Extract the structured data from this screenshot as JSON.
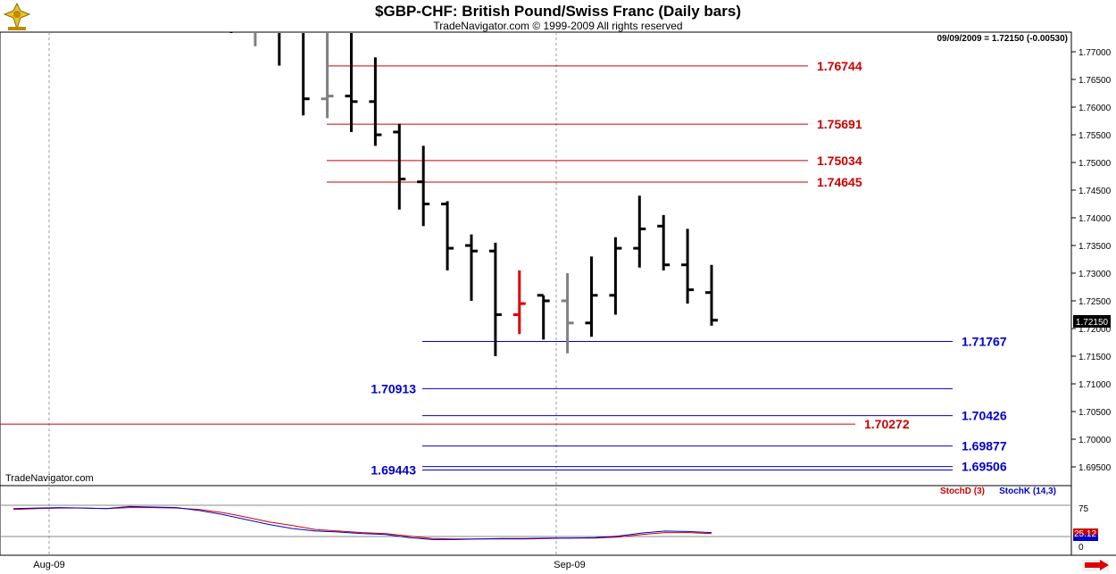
{
  "header": {
    "title": "$GBP-CHF:  British Pound/Swiss Franc  (Daily bars)",
    "copyright": "TradeNavigator.com © 1999-2009 All rights reserved",
    "quote": "09/09/2009 = 1.72150 (-0.00530)"
  },
  "price_panel": {
    "watermark": "TradeNavigator.com",
    "last_price": "1.72150",
    "last_price_value": 1.7215,
    "y_ticks": [
      "1.77000",
      "1.76500",
      "1.76000",
      "1.75500",
      "1.75000",
      "1.74500",
      "1.74000",
      "1.73500",
      "1.73000",
      "1.72500",
      "1.72000",
      "1.71500",
      "1.71000",
      "1.70500",
      "1.70000",
      "1.69500"
    ]
  },
  "stoch_panel": {
    "legend_d": "StochD (3)",
    "legend_k": "StochK (14,3)",
    "y_ticks": [
      "75",
      "0"
    ],
    "last_value": "25.12"
  },
  "x_labels": [
    "Aug-09",
    "Sep-09"
  ],
  "colors": {
    "bar_up": "#000000",
    "bar_down_red": "#dd0000",
    "bar_gray": "#808080",
    "resistance": "#cc0000",
    "support": "#0000cc",
    "stoch_d": "#cc0000",
    "stoch_k": "#0000cc"
  },
  "chart_data": {
    "type": "ohlc",
    "ylim": [
      1.6925,
      1.7775
    ],
    "bars": [
      {
        "o": 1.776,
        "h": 1.778,
        "l": 1.7735,
        "c": 1.7755,
        "color": "black"
      },
      {
        "o": 1.776,
        "h": 1.778,
        "l": 1.771,
        "c": 1.7765,
        "color": "gray"
      },
      {
        "o": 1.777,
        "h": 1.778,
        "l": 1.7675,
        "c": 1.7775,
        "color": "black"
      },
      {
        "o": 1.775,
        "h": 1.778,
        "l": 1.7585,
        "c": 1.7615,
        "color": "black"
      },
      {
        "o": 1.7615,
        "h": 1.778,
        "l": 1.758,
        "c": 1.762,
        "color": "gray"
      },
      {
        "o": 1.762,
        "h": 1.778,
        "l": 1.7555,
        "c": 1.761,
        "color": "black"
      },
      {
        "o": 1.761,
        "h": 1.769,
        "l": 1.753,
        "c": 1.755,
        "color": "black"
      },
      {
        "o": 1.7555,
        "h": 1.757,
        "l": 1.7415,
        "c": 1.747,
        "color": "black"
      },
      {
        "o": 1.7465,
        "h": 1.753,
        "l": 1.7385,
        "c": 1.7425,
        "color": "black"
      },
      {
        "o": 1.7425,
        "h": 1.743,
        "l": 1.7305,
        "c": 1.7345,
        "color": "black"
      },
      {
        "o": 1.735,
        "h": 1.737,
        "l": 1.725,
        "c": 1.734,
        "color": "black"
      },
      {
        "o": 1.734,
        "h": 1.7355,
        "l": 1.715,
        "c": 1.7225,
        "color": "black"
      },
      {
        "o": 1.7225,
        "h": 1.7305,
        "l": 1.719,
        "c": 1.7245,
        "color": "red"
      },
      {
        "o": 1.726,
        "h": 1.726,
        "l": 1.718,
        "c": 1.725,
        "color": "black"
      },
      {
        "o": 1.725,
        "h": 1.73,
        "l": 1.7155,
        "c": 1.721,
        "color": "gray"
      },
      {
        "o": 1.721,
        "h": 1.733,
        "l": 1.7185,
        "c": 1.726,
        "color": "black"
      },
      {
        "o": 1.726,
        "h": 1.7365,
        "l": 1.7225,
        "c": 1.7345,
        "color": "black"
      },
      {
        "o": 1.7345,
        "h": 1.744,
        "l": 1.731,
        "c": 1.738,
        "color": "black"
      },
      {
        "o": 1.7385,
        "h": 1.7405,
        "l": 1.7305,
        "c": 1.7315,
        "color": "black"
      },
      {
        "o": 1.7315,
        "h": 1.738,
        "l": 1.7245,
        "c": 1.727,
        "color": "black"
      },
      {
        "o": 1.7265,
        "h": 1.7315,
        "l": 1.7205,
        "c": 1.7215,
        "color": "black"
      }
    ],
    "resistance_levels": [
      {
        "label": "1.76744",
        "value": 1.76744
      },
      {
        "label": "1.75691",
        "value": 1.75691
      },
      {
        "label": "1.75034",
        "value": 1.75034
      },
      {
        "label": "1.74645",
        "value": 1.74645
      },
      {
        "label": "1.70272",
        "value": 1.70272
      }
    ],
    "support_levels": [
      {
        "label": "1.71767",
        "value": 1.71767,
        "label_side": "right"
      },
      {
        "label": "1.70913",
        "value": 1.70913,
        "label_side": "left"
      },
      {
        "label": "1.70426",
        "value": 1.70426,
        "label_side": "right"
      },
      {
        "label": "1.69877",
        "value": 1.69877,
        "label_side": "right"
      },
      {
        "label": "1.69443",
        "value": 1.69443,
        "label_side": "left"
      },
      {
        "label": "1.69506",
        "value": 1.69506,
        "label_side": "right"
      }
    ],
    "stochastic": {
      "ylim": [
        0,
        100
      ],
      "stoch_d": [
        70,
        72,
        73,
        73,
        72,
        74,
        74,
        73,
        70,
        64,
        55,
        45,
        38,
        30,
        27,
        24,
        22,
        17,
        12,
        11,
        11,
        11,
        11,
        12,
        13,
        13,
        15,
        20,
        24,
        24,
        22
      ],
      "stoch_k": [
        72,
        73,
        74,
        73,
        72,
        76,
        75,
        74,
        68,
        60,
        50,
        40,
        32,
        27,
        25,
        22,
        20,
        14,
        10,
        10,
        11,
        12,
        12,
        13,
        13,
        14,
        17,
        23,
        27,
        26,
        24
      ]
    }
  }
}
